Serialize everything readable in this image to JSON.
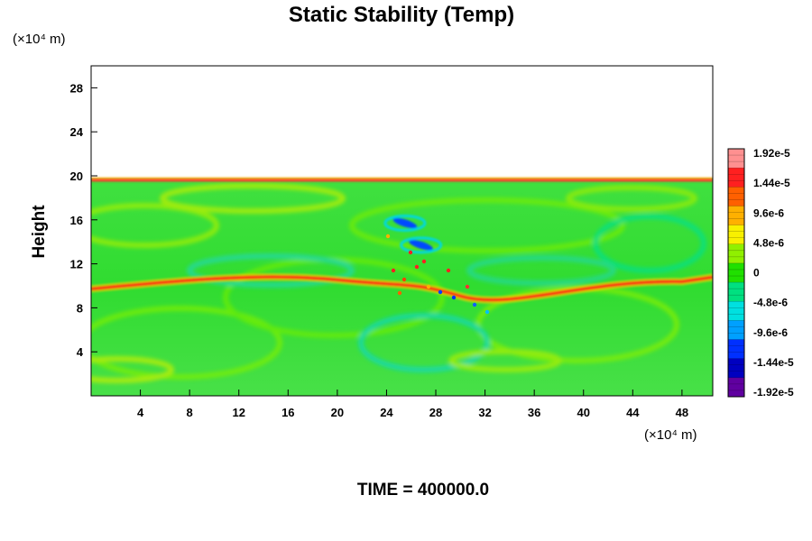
{
  "chart_data": {
    "type": "heatmap",
    "title": "Static Stability (Temp)",
    "ylabel": "Height",
    "x_unit_label": "(×10⁴ m)",
    "y_unit_label": "(×10⁴ m)",
    "xlim": [
      0,
      50.5
    ],
    "ylim": [
      0,
      30
    ],
    "x_ticks": [
      4,
      8,
      12,
      16,
      20,
      24,
      28,
      32,
      36,
      40,
      44,
      48
    ],
    "y_ticks": [
      4,
      8,
      12,
      16,
      20,
      24,
      28
    ],
    "field_top": 19.8,
    "colorbar": {
      "labels": [
        "1.92e-5",
        "1.44e-5",
        "9.6e-6",
        "4.8e-6",
        "0",
        "-4.8e-6",
        "-9.6e-6",
        "-1.44e-5",
        "-1.92e-5"
      ],
      "values": [
        1.92e-05,
        1.44e-05,
        9.6e-06,
        4.8e-06,
        0,
        -4.8e-06,
        -9.6e-06,
        -1.44e-05,
        -1.92e-05
      ],
      "colors_high_to_low": [
        "#ff9090",
        "#ff2020",
        "#ff6000",
        "#ffb000",
        "#f8f000",
        "#90f000",
        "#20e000",
        "#00e080",
        "#00e0e0",
        "#00a0ff",
        "#0030ff",
        "#0000c0",
        "#6000a0"
      ]
    },
    "features": [
      {
        "name": "tropopause band",
        "type": "positive",
        "x_start": 0,
        "x_end": 50.5,
        "y": 19.6
      },
      {
        "name": "mid-level stable layer",
        "type": "positive",
        "x_start": 0,
        "x_end": 50.5,
        "y": 11.2
      },
      {
        "name": "unstable patch",
        "type": "negative",
        "x_center": 25.5,
        "y": 15.7
      },
      {
        "name": "unstable patch",
        "type": "negative",
        "x_center": 26.8,
        "y": 13.7
      }
    ],
    "time_label": "TIME = 400000.0"
  }
}
